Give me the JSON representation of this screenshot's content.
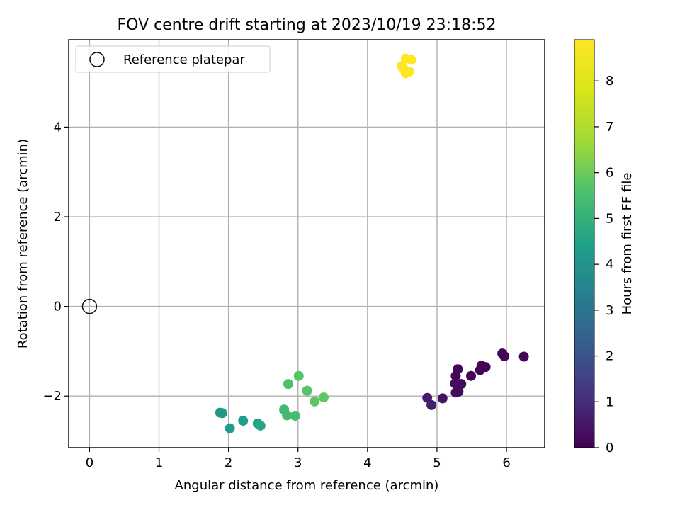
{
  "chart_data": {
    "type": "scatter",
    "title": "FOV centre drift starting at 2023/10/19 23:18:52",
    "xlabel": "Angular distance from reference (arcmin)",
    "ylabel": "Rotation from reference (arcmin)",
    "xlim": [
      -0.3,
      6.55
    ],
    "ylim": [
      -3.15,
      5.95
    ],
    "xticks": [
      "0",
      "1",
      "2",
      "3",
      "4",
      "5",
      "6"
    ],
    "yticks": [
      "−2",
      "0",
      "2",
      "4"
    ],
    "grid": true,
    "legend": {
      "location": "upper-left",
      "entries": [
        "Reference platepar"
      ]
    },
    "reference_point": {
      "x": 0,
      "y": 0,
      "label": "Reference platepar"
    },
    "colorbar": {
      "label": "Hours from first FF file",
      "range": [
        0,
        8.9
      ],
      "ticks": [
        "0",
        "1",
        "2",
        "3",
        "4",
        "5",
        "6",
        "7",
        "8"
      ],
      "colormap": "viridis"
    },
    "points": [
      {
        "x": 4.86,
        "y": -2.04,
        "hours": 0.6
      },
      {
        "x": 4.92,
        "y": -2.2,
        "hours": 0.7
      },
      {
        "x": 5.08,
        "y": -2.05,
        "hours": 0.4
      },
      {
        "x": 5.27,
        "y": -1.92,
        "hours": 0.2
      },
      {
        "x": 5.31,
        "y": -1.9,
        "hours": 0.2
      },
      {
        "x": 5.26,
        "y": -1.72,
        "hours": 0.2
      },
      {
        "x": 5.35,
        "y": -1.73,
        "hours": 0.2
      },
      {
        "x": 5.27,
        "y": -1.55,
        "hours": 0.1
      },
      {
        "x": 5.3,
        "y": -1.4,
        "hours": 0.1
      },
      {
        "x": 5.49,
        "y": -1.55,
        "hours": 0.1
      },
      {
        "x": 5.62,
        "y": -1.42,
        "hours": 0.1
      },
      {
        "x": 5.64,
        "y": -1.32,
        "hours": 0.1
      },
      {
        "x": 5.7,
        "y": -1.35,
        "hours": 0.1
      },
      {
        "x": 5.94,
        "y": -1.05,
        "hours": 0.1
      },
      {
        "x": 5.97,
        "y": -1.11,
        "hours": 0.1
      },
      {
        "x": 6.25,
        "y": -1.12,
        "hours": 0.1
      },
      {
        "x": 1.88,
        "y": -2.37,
        "hours": 4.2
      },
      {
        "x": 1.91,
        "y": -2.38,
        "hours": 4.2
      },
      {
        "x": 2.02,
        "y": -2.72,
        "hours": 4.3
      },
      {
        "x": 2.21,
        "y": -2.55,
        "hours": 4.4
      },
      {
        "x": 2.42,
        "y": -2.61,
        "hours": 4.5
      },
      {
        "x": 2.46,
        "y": -2.66,
        "hours": 4.6
      },
      {
        "x": 2.8,
        "y": -2.3,
        "hours": 5.3
      },
      {
        "x": 2.84,
        "y": -2.43,
        "hours": 5.3
      },
      {
        "x": 2.96,
        "y": -2.44,
        "hours": 5.4
      },
      {
        "x": 2.86,
        "y": -1.73,
        "hours": 5.6
      },
      {
        "x": 3.01,
        "y": -1.55,
        "hours": 5.7
      },
      {
        "x": 3.13,
        "y": -1.88,
        "hours": 5.7
      },
      {
        "x": 3.24,
        "y": -2.12,
        "hours": 5.8
      },
      {
        "x": 3.37,
        "y": -2.03,
        "hours": 5.8
      },
      {
        "x": 4.49,
        "y": 5.36,
        "hours": 8.9
      },
      {
        "x": 4.52,
        "y": 5.3,
        "hours": 8.9
      },
      {
        "x": 4.55,
        "y": 5.2,
        "hours": 8.9
      },
      {
        "x": 4.6,
        "y": 5.24,
        "hours": 8.9
      },
      {
        "x": 4.55,
        "y": 5.53,
        "hours": 8.9
      },
      {
        "x": 4.63,
        "y": 5.5,
        "hours": 8.9
      }
    ]
  }
}
